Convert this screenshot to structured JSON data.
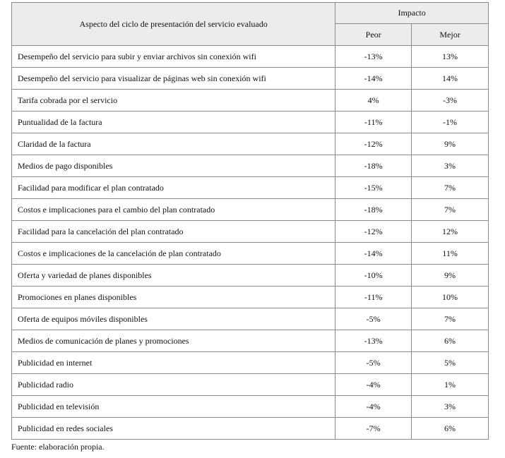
{
  "table": {
    "header": {
      "aspect": "Aspecto del ciclo de presentación del servicio evaluado",
      "impact": "Impacto",
      "worse": "Peor",
      "better": "Mejor"
    },
    "rows": [
      [
        "Desempeño del servicio para subir y enviar archivos sin conexión wifi",
        "-13%",
        "13%"
      ],
      [
        "Desempeño del servicio para visualizar de páginas web sin conexión wifi",
        "-14%",
        "14%"
      ],
      [
        "Tarifa cobrada por el servicio",
        "4%",
        "-3%"
      ],
      [
        "Puntualidad de la factura",
        "-11%",
        "-1%"
      ],
      [
        "Claridad de la factura",
        "-12%",
        "9%"
      ],
      [
        "Medios de pago disponibles",
        "-18%",
        "3%"
      ],
      [
        "Facilidad para modificar el plan contratado",
        "-15%",
        "7%"
      ],
      [
        "Costos e implicaciones para el cambio del plan contratado",
        "-18%",
        "7%"
      ],
      [
        "Facilidad para la cancelación del plan contratado",
        "-12%",
        "12%"
      ],
      [
        "Costos e implicaciones de la cancelación de plan contratado",
        "-14%",
        "11%"
      ],
      [
        "Oferta y variedad de planes disponibles",
        "-10%",
        "9%"
      ],
      [
        "Promociones en planes disponibles",
        "-11%",
        "10%"
      ],
      [
        "Oferta de equipos móviles disponibles",
        "-5%",
        "7%"
      ],
      [
        "Medios de comunicación de planes y promociones",
        "-13%",
        "6%"
      ],
      [
        "Publicidad en internet",
        "-5%",
        "5%"
      ],
      [
        "Publicidad radio",
        "-4%",
        "1%"
      ],
      [
        "Publicidad en televisión",
        "-4%",
        "3%"
      ],
      [
        "Publicidad en redes sociales",
        "-7%",
        "6%"
      ]
    ]
  },
  "source": "Fuente: elaboración propia."
}
